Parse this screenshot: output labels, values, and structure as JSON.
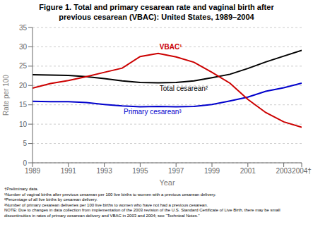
{
  "chart_data": {
    "type": "line",
    "title": "Figure 1. Total and primary cesarean rate and vaginal birth after\nprevious cesarean (VBAC):  United States,  1989–2004",
    "x_label": "Year",
    "y_label": "Rate per 100",
    "x": [
      1989,
      1990,
      1991,
      1992,
      1993,
      1994,
      1995,
      1996,
      1997,
      1998,
      1999,
      2000,
      2001,
      2002,
      2003,
      2004
    ],
    "series": [
      {
        "name": "Total cesarean²",
        "color": "#000000",
        "values": [
          22.8,
          22.7,
          22.6,
          22.3,
          21.8,
          21.2,
          20.8,
          20.7,
          20.8,
          21.2,
          22.0,
          22.9,
          24.4,
          26.1,
          27.6,
          29.1
        ]
      },
      {
        "name": "Primary cesarean³",
        "color": "#0000cc",
        "values": [
          15.9,
          15.8,
          15.8,
          15.6,
          15.1,
          14.7,
          14.5,
          14.6,
          14.5,
          14.6,
          15.1,
          16.0,
          17.0,
          18.5,
          19.4,
          20.6
        ]
      },
      {
        "name": "VBAC¹",
        "color": "#cc0000",
        "values": [
          19.3,
          20.5,
          21.3,
          22.3,
          23.4,
          24.5,
          27.5,
          28.3,
          27.4,
          26.0,
          23.4,
          20.6,
          16.4,
          13.0,
          10.6,
          9.2
        ]
      }
    ],
    "xlim": [
      1989,
      2004
    ],
    "xticks": [
      1989,
      1991,
      1993,
      1995,
      1997,
      1999,
      2001,
      2003,
      {
        "value": 2004,
        "label": "2004†"
      }
    ],
    "ylim": [
      0,
      35
    ],
    "yticks": [
      0,
      5,
      10,
      15,
      20,
      25,
      30,
      35
    ],
    "grid": true,
    "footnotes": [
      "†Preliminary data.",
      "¹Number of vaginal births after previous cesarean per 100 live births  to women with a previous cesarean delivery.",
      "²Percentage of all live births by cesarean delivery.",
      "³Number of primary cesarean deliveries per 100 live births  to women who have not had a previous cesarean.",
      "NOTE: Due to changes in data collection from implementation of the 2003 revision of the U.S. Standard Certificate of Live Birth, there may be small",
      "discontinuities in rates of primary cesarean delivery and VBAC in 2003 and 2004; see “Technical Notes.”"
    ]
  }
}
